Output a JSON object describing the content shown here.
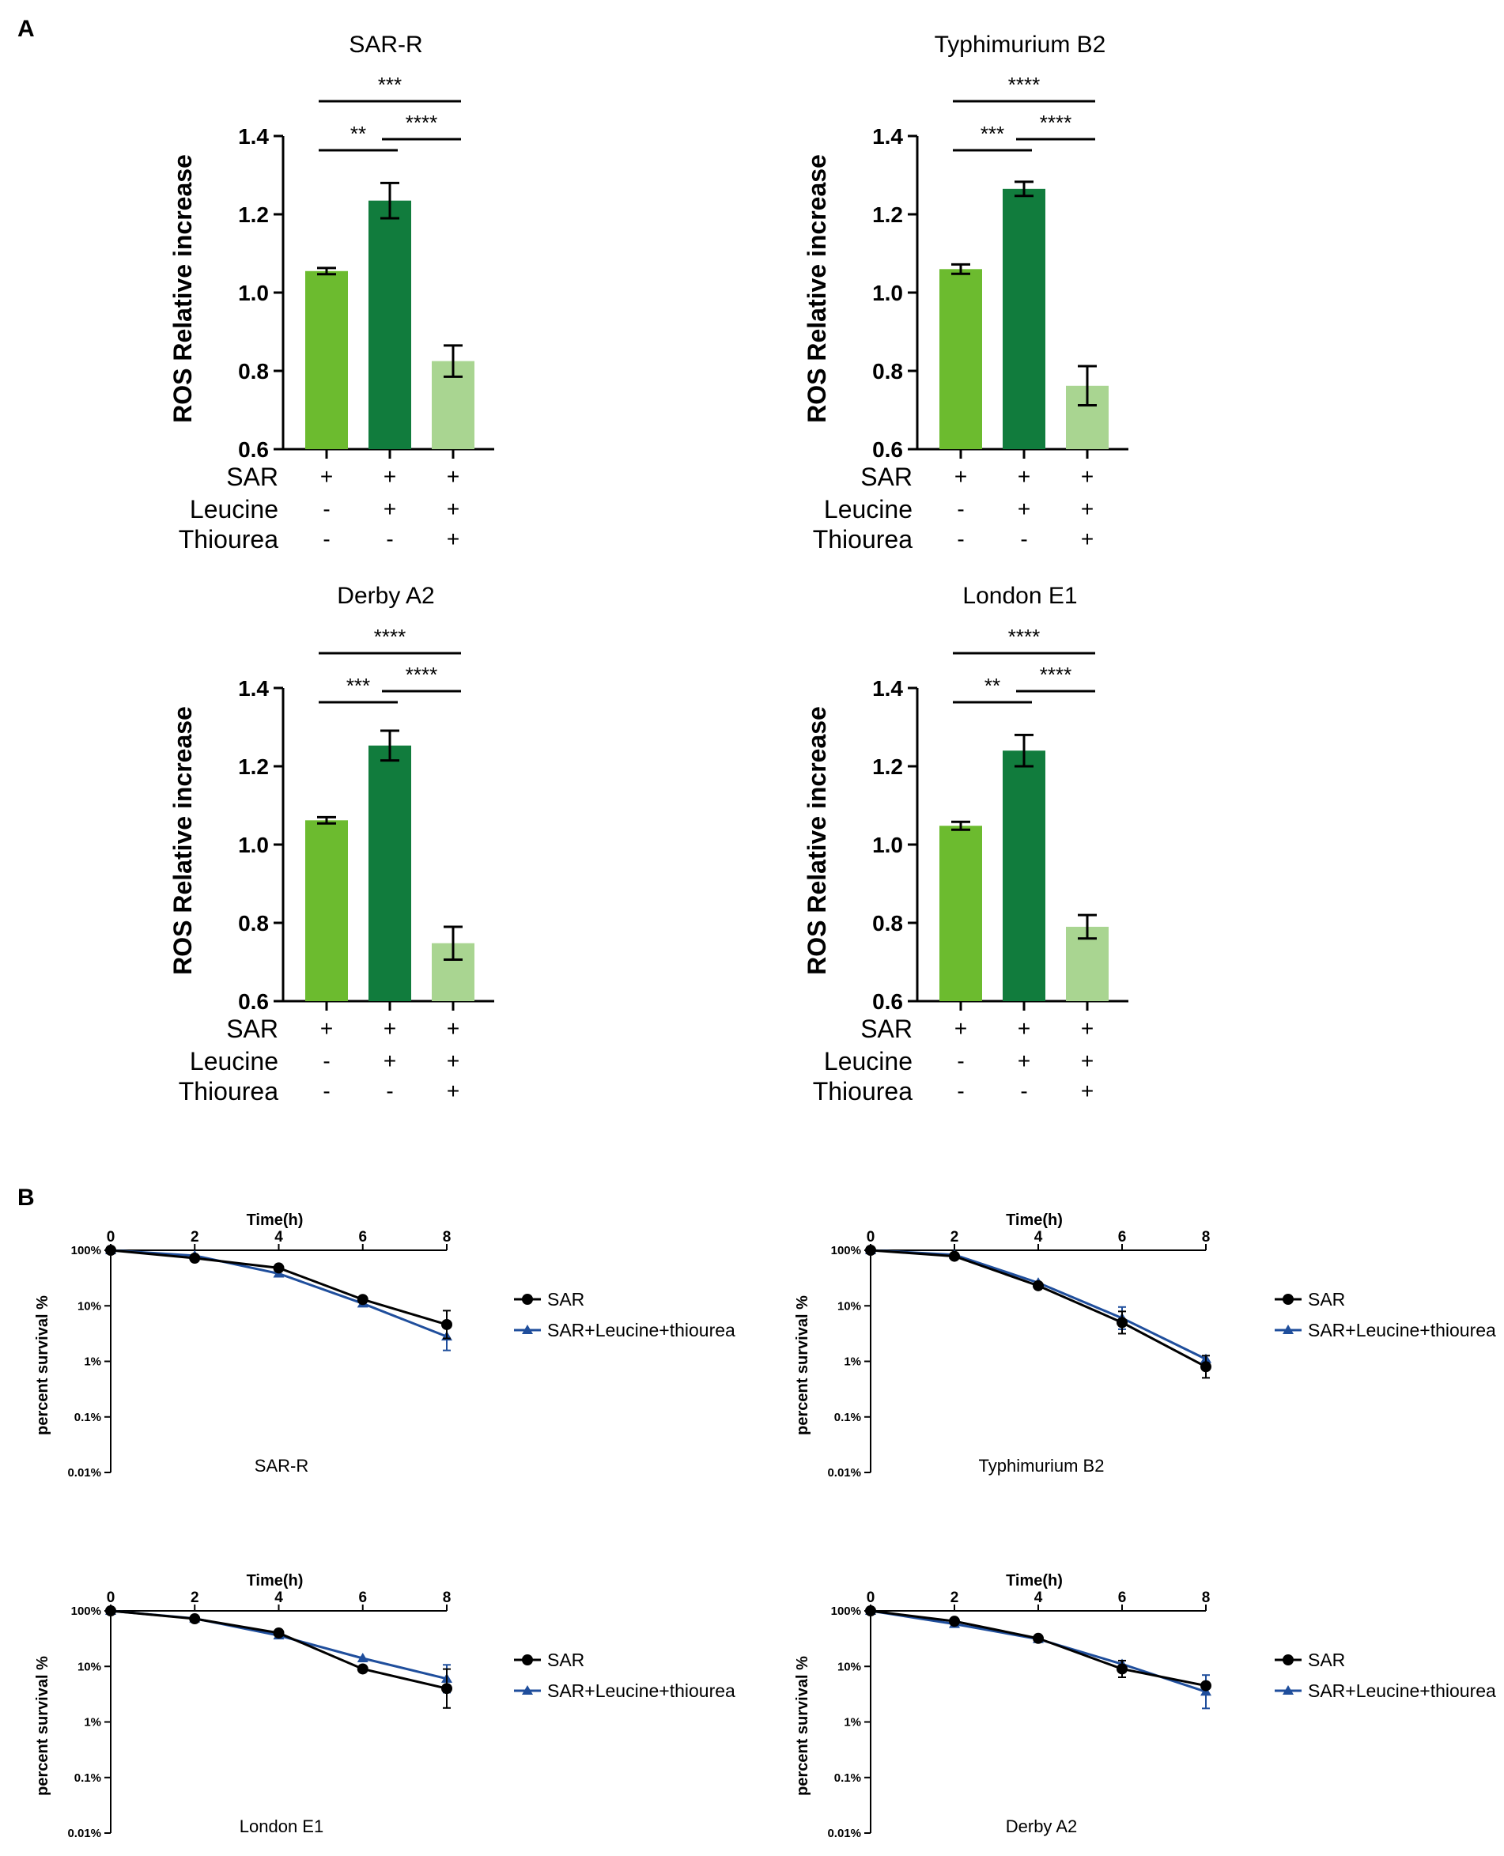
{
  "panel_labels": {
    "a": "A",
    "b": "B"
  },
  "colors": {
    "sar": "#6cbb2f",
    "sar_leucine": "#117c3d",
    "sar_leucine_thiourea": "#a9d591",
    "line_sar": "#000000",
    "line_combo": "#1f4e9c"
  },
  "chart_data": [
    {
      "type": "bar",
      "title": "SAR-R",
      "ylabel": "ROS Relative increase",
      "ylim": [
        0.6,
        1.4
      ],
      "yticks": [
        "0.6",
        "0.8",
        "1.0",
        "1.2",
        "1.4"
      ],
      "values": [
        1.055,
        1.235,
        0.825
      ],
      "errors": [
        0.008,
        0.045,
        0.04
      ],
      "conditions": [
        {
          "label": "SAR",
          "signs": [
            "+",
            "+",
            "+"
          ]
        },
        {
          "label": "Leucine",
          "signs": [
            "-",
            "+",
            "+"
          ]
        },
        {
          "label": "Thiourea",
          "signs": [
            "-",
            "-",
            "+"
          ]
        }
      ],
      "significance": [
        {
          "from": 0,
          "to": 2,
          "label": "***"
        },
        {
          "from": 0,
          "to": 1,
          "label": "**"
        },
        {
          "from": 1,
          "to": 2,
          "label": "****"
        }
      ]
    },
    {
      "type": "bar",
      "title": "Typhimurium B2",
      "ylabel": "ROS Relative increase",
      "ylim": [
        0.6,
        1.4
      ],
      "yticks": [
        "0.6",
        "0.8",
        "1.0",
        "1.2",
        "1.4"
      ],
      "values": [
        1.06,
        1.265,
        0.762
      ],
      "errors": [
        0.012,
        0.018,
        0.05
      ],
      "conditions": [
        {
          "label": "SAR",
          "signs": [
            "+",
            "+",
            "+"
          ]
        },
        {
          "label": "Leucine",
          "signs": [
            "-",
            "+",
            "+"
          ]
        },
        {
          "label": "Thiourea",
          "signs": [
            "-",
            "-",
            "+"
          ]
        }
      ],
      "significance": [
        {
          "from": 0,
          "to": 2,
          "label": "****"
        },
        {
          "from": 0,
          "to": 1,
          "label": "***"
        },
        {
          "from": 1,
          "to": 2,
          "label": "****"
        }
      ]
    },
    {
      "type": "bar",
      "title": "Derby A2",
      "ylabel": "ROS Relative increase",
      "ylim": [
        0.6,
        1.4
      ],
      "yticks": [
        "0.6",
        "0.8",
        "1.0",
        "1.2",
        "1.4"
      ],
      "values": [
        1.062,
        1.253,
        0.748
      ],
      "errors": [
        0.008,
        0.038,
        0.042
      ],
      "conditions": [
        {
          "label": "SAR",
          "signs": [
            "+",
            "+",
            "+"
          ]
        },
        {
          "label": "Leucine",
          "signs": [
            "-",
            "+",
            "+"
          ]
        },
        {
          "label": "Thiourea",
          "signs": [
            "-",
            "-",
            "+"
          ]
        }
      ],
      "significance": [
        {
          "from": 0,
          "to": 2,
          "label": "****"
        },
        {
          "from": 0,
          "to": 1,
          "label": "***"
        },
        {
          "from": 1,
          "to": 2,
          "label": "****"
        }
      ]
    },
    {
      "type": "bar",
      "title": "London E1",
      "ylabel": "ROS Relative increase",
      "ylim": [
        0.6,
        1.4
      ],
      "yticks": [
        "0.6",
        "0.8",
        "1.0",
        "1.2",
        "1.4"
      ],
      "values": [
        1.048,
        1.24,
        0.79
      ],
      "errors": [
        0.01,
        0.04,
        0.03
      ],
      "conditions": [
        {
          "label": "SAR",
          "signs": [
            "+",
            "+",
            "+"
          ]
        },
        {
          "label": "Leucine",
          "signs": [
            "-",
            "+",
            "+"
          ]
        },
        {
          "label": "Thiourea",
          "signs": [
            "-",
            "-",
            "+"
          ]
        }
      ],
      "significance": [
        {
          "from": 0,
          "to": 2,
          "label": "****"
        },
        {
          "from": 0,
          "to": 1,
          "label": "**"
        },
        {
          "from": 1,
          "to": 2,
          "label": "****"
        }
      ]
    },
    {
      "type": "line",
      "strain": "SAR-R",
      "xlabel": "Time(h)",
      "ylabel": "percent survival %",
      "x": [
        0,
        2,
        4,
        6,
        8
      ],
      "xlim": [
        0,
        8
      ],
      "ylim": [
        0.01,
        100
      ],
      "yscale": "log",
      "yticks": [
        {
          "value": 100,
          "label": "100%"
        },
        {
          "value": 10,
          "label": "10%"
        },
        {
          "value": 1,
          "label": "1%"
        },
        {
          "value": 0.1,
          "label": "0.1%"
        },
        {
          "value": 0.01,
          "label": "0.01%"
        }
      ],
      "series": [
        {
          "name": "SAR",
          "values": [
            100,
            72,
            48,
            13,
            4.6
          ],
          "err": [
            0,
            0,
            0,
            0,
            0.25
          ]
        },
        {
          "name": "SAR+Leucine+thiourea",
          "values": [
            100,
            80,
            38,
            11,
            2.8
          ],
          "err": [
            0,
            0,
            0,
            0,
            0.25
          ]
        }
      ]
    },
    {
      "type": "line",
      "strain": "Typhimurium B2",
      "xlabel": "Time(h)",
      "ylabel": "percent survival %",
      "x": [
        0,
        2,
        4,
        6,
        8
      ],
      "xlim": [
        0,
        8
      ],
      "ylim": [
        0.01,
        100
      ],
      "yscale": "log",
      "yticks": [
        {
          "value": 100,
          "label": "100%"
        },
        {
          "value": 10,
          "label": "10%"
        },
        {
          "value": 1,
          "label": "1%"
        },
        {
          "value": 0.1,
          "label": "0.1%"
        },
        {
          "value": 0.01,
          "label": "0.01%"
        }
      ],
      "series": [
        {
          "name": "SAR",
          "values": [
            100,
            78,
            23,
            5.0,
            0.8
          ],
          "err": [
            0,
            0,
            0,
            0.2,
            0.2
          ]
        },
        {
          "name": "SAR+Leucine+thiourea",
          "values": [
            100,
            83,
            26,
            6.0,
            1.1
          ],
          "err": [
            0,
            0,
            0,
            0.2,
            0
          ]
        }
      ]
    },
    {
      "type": "line",
      "strain": "London E1",
      "xlabel": "Time(h)",
      "ylabel": "percent survival %",
      "x": [
        0,
        2,
        4,
        6,
        8
      ],
      "xlim": [
        0,
        8
      ],
      "ylim": [
        0.01,
        100
      ],
      "yscale": "log",
      "yticks": [
        {
          "value": 100,
          "label": "100%"
        },
        {
          "value": 10,
          "label": "10%"
        },
        {
          "value": 1,
          "label": "1%"
        },
        {
          "value": 0.1,
          "label": "0.1%"
        },
        {
          "value": 0.01,
          "label": "0.01%"
        }
      ],
      "series": [
        {
          "name": "SAR",
          "values": [
            100,
            72,
            40,
            9,
            4.0
          ],
          "err": [
            0,
            0,
            0,
            0,
            0.35
          ]
        },
        {
          "name": "SAR+Leucine+thiourea",
          "values": [
            100,
            73,
            36,
            14,
            6.0
          ],
          "err": [
            0,
            0,
            0,
            0,
            0.25
          ]
        }
      ]
    },
    {
      "type": "line",
      "strain": "Derby A2",
      "xlabel": "Time(h)",
      "ylabel": "percent survival %",
      "x": [
        0,
        2,
        4,
        6,
        8
      ],
      "xlim": [
        0,
        8
      ],
      "ylim": [
        0.01,
        100
      ],
      "yscale": "log",
      "yticks": [
        {
          "value": 100,
          "label": "100%"
        },
        {
          "value": 10,
          "label": "10%"
        },
        {
          "value": 1,
          "label": "1%"
        },
        {
          "value": 0.1,
          "label": "0.1%"
        },
        {
          "value": 0.01,
          "label": "0.01%"
        }
      ],
      "series": [
        {
          "name": "SAR",
          "values": [
            100,
            65,
            32,
            9,
            4.5
          ],
          "err": [
            0,
            0,
            0,
            0.15,
            0
          ]
        },
        {
          "name": "SAR+Leucine+thiourea",
          "values": [
            100,
            58,
            31,
            11,
            3.5
          ],
          "err": [
            0,
            0,
            0,
            0,
            0.3
          ]
        }
      ]
    }
  ]
}
